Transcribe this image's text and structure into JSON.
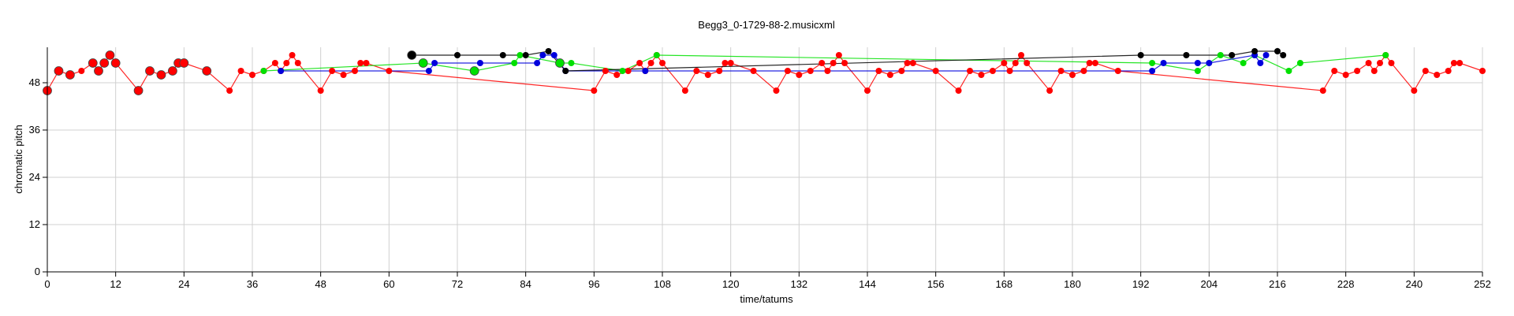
{
  "chart_data": {
    "type": "scatter",
    "title": "Begg3_0-1729-88-2.musicxml",
    "xlabel": "time/tatums",
    "ylabel": "chromatic pitch",
    "xlim": [
      0,
      252
    ],
    "ylim": [
      0,
      57
    ],
    "xticks": [
      0,
      12,
      24,
      36,
      48,
      60,
      72,
      84,
      96,
      108,
      120,
      132,
      144,
      156,
      168,
      180,
      192,
      204,
      216,
      228,
      240,
      252
    ],
    "yticks": [
      0,
      12,
      24,
      36,
      48
    ],
    "grid": true,
    "series": [
      {
        "color": "#ff0000",
        "points": [
          [
            0,
            46,
            2
          ],
          [
            2,
            51,
            2
          ],
          [
            4,
            50,
            2
          ],
          [
            6,
            51,
            1
          ],
          [
            8,
            53,
            2
          ],
          [
            9,
            51,
            2
          ],
          [
            10,
            53,
            2
          ],
          [
            11,
            55,
            2
          ],
          [
            12,
            53,
            2
          ],
          [
            16,
            46,
            2
          ],
          [
            18,
            51,
            2
          ],
          [
            20,
            50,
            2
          ],
          [
            22,
            51,
            2
          ],
          [
            23,
            53,
            2
          ],
          [
            24,
            53,
            2
          ],
          [
            28,
            51,
            2
          ],
          [
            32,
            46,
            1
          ],
          [
            34,
            51,
            1
          ],
          [
            36,
            50,
            1
          ],
          [
            38,
            51,
            1
          ],
          [
            40,
            53,
            1
          ],
          [
            41,
            51,
            1
          ],
          [
            42,
            53,
            1
          ],
          [
            43,
            55,
            1
          ],
          [
            44,
            53,
            1
          ],
          [
            48,
            46,
            1
          ],
          [
            50,
            51,
            1
          ],
          [
            52,
            50,
            1
          ],
          [
            54,
            51,
            1
          ],
          [
            55,
            53,
            1
          ],
          [
            56,
            53,
            1
          ],
          [
            60,
            51,
            1
          ],
          [
            96,
            46,
            1
          ],
          [
            98,
            51,
            1
          ],
          [
            100,
            50,
            1
          ],
          [
            102,
            51,
            1
          ],
          [
            104,
            53,
            1
          ],
          [
            105,
            51,
            1
          ],
          [
            106,
            53,
            1
          ],
          [
            107,
            55,
            1
          ],
          [
            108,
            53,
            1
          ],
          [
            112,
            46,
            1
          ],
          [
            114,
            51,
            1
          ],
          [
            116,
            50,
            1
          ],
          [
            118,
            51,
            1
          ],
          [
            119,
            53,
            1
          ],
          [
            120,
            53,
            1
          ],
          [
            124,
            51,
            1
          ],
          [
            128,
            46,
            1
          ],
          [
            130,
            51,
            1
          ],
          [
            132,
            50,
            1
          ],
          [
            134,
            51,
            1
          ],
          [
            136,
            53,
            1
          ],
          [
            137,
            51,
            1
          ],
          [
            138,
            53,
            1
          ],
          [
            139,
            55,
            1
          ],
          [
            140,
            53,
            1
          ],
          [
            144,
            46,
            1
          ],
          [
            146,
            51,
            1
          ],
          [
            148,
            50,
            1
          ],
          [
            150,
            51,
            1
          ],
          [
            151,
            53,
            1
          ],
          [
            152,
            53,
            1
          ],
          [
            156,
            51,
            1
          ],
          [
            160,
            46,
            1
          ],
          [
            162,
            51,
            1
          ],
          [
            164,
            50,
            1
          ],
          [
            166,
            51,
            1
          ],
          [
            168,
            53,
            1
          ],
          [
            169,
            51,
            1
          ],
          [
            170,
            53,
            1
          ],
          [
            171,
            55,
            1
          ],
          [
            172,
            53,
            1
          ],
          [
            176,
            46,
            1
          ],
          [
            178,
            51,
            1
          ],
          [
            180,
            50,
            1
          ],
          [
            182,
            51,
            1
          ],
          [
            183,
            53,
            1
          ],
          [
            184,
            53,
            1
          ],
          [
            188,
            51,
            1
          ],
          [
            224,
            46,
            1
          ],
          [
            226,
            51,
            1
          ],
          [
            228,
            50,
            1
          ],
          [
            230,
            51,
            1
          ],
          [
            232,
            53,
            1
          ],
          [
            233,
            51,
            1
          ],
          [
            234,
            53,
            1
          ],
          [
            235,
            55,
            1
          ],
          [
            236,
            53,
            1
          ],
          [
            240,
            46,
            1
          ],
          [
            242,
            51,
            1
          ],
          [
            244,
            50,
            1
          ],
          [
            246,
            51,
            1
          ],
          [
            247,
            53,
            1
          ],
          [
            248,
            53,
            1
          ],
          [
            252,
            51,
            1
          ]
        ]
      },
      {
        "color": "#00e000",
        "points": [
          [
            38,
            51,
            1
          ],
          [
            66,
            53,
            2
          ],
          [
            75,
            51,
            2
          ],
          [
            82,
            53,
            1
          ],
          [
            83,
            55,
            1
          ],
          [
            90,
            53,
            2
          ],
          [
            92,
            53,
            1
          ],
          [
            101,
            51,
            1
          ],
          [
            107,
            55,
            1
          ],
          [
            194,
            53,
            1
          ],
          [
            202,
            51,
            1
          ],
          [
            206,
            55,
            1
          ],
          [
            210,
            53,
            1
          ],
          [
            212,
            55,
            1
          ],
          [
            218,
            51,
            1
          ],
          [
            220,
            53,
            1
          ],
          [
            235,
            55,
            1
          ]
        ]
      },
      {
        "color": "#0000dd",
        "points": [
          [
            41,
            51,
            1
          ],
          [
            67,
            51,
            1
          ],
          [
            68,
            53,
            1
          ],
          [
            76,
            53,
            1
          ],
          [
            86,
            53,
            1
          ],
          [
            87,
            55,
            1
          ],
          [
            89,
            55,
            1
          ],
          [
            91,
            51,
            1
          ],
          [
            105,
            51,
            1
          ],
          [
            194,
            51,
            1
          ],
          [
            196,
            53,
            1
          ],
          [
            202,
            53,
            1
          ],
          [
            204,
            53,
            1
          ],
          [
            212,
            55,
            1
          ],
          [
            213,
            53,
            1
          ],
          [
            214,
            55,
            1
          ]
        ]
      },
      {
        "color": "#000000",
        "points": [
          [
            64,
            55,
            2
          ],
          [
            72,
            55,
            1
          ],
          [
            80,
            55,
            1
          ],
          [
            84,
            55,
            1
          ],
          [
            88,
            56,
            1
          ],
          [
            91,
            51,
            1
          ],
          [
            192,
            55,
            1
          ],
          [
            200,
            55,
            1
          ],
          [
            208,
            55,
            1
          ],
          [
            212,
            56,
            1
          ],
          [
            216,
            56,
            1
          ],
          [
            217,
            55,
            1
          ]
        ]
      }
    ]
  }
}
